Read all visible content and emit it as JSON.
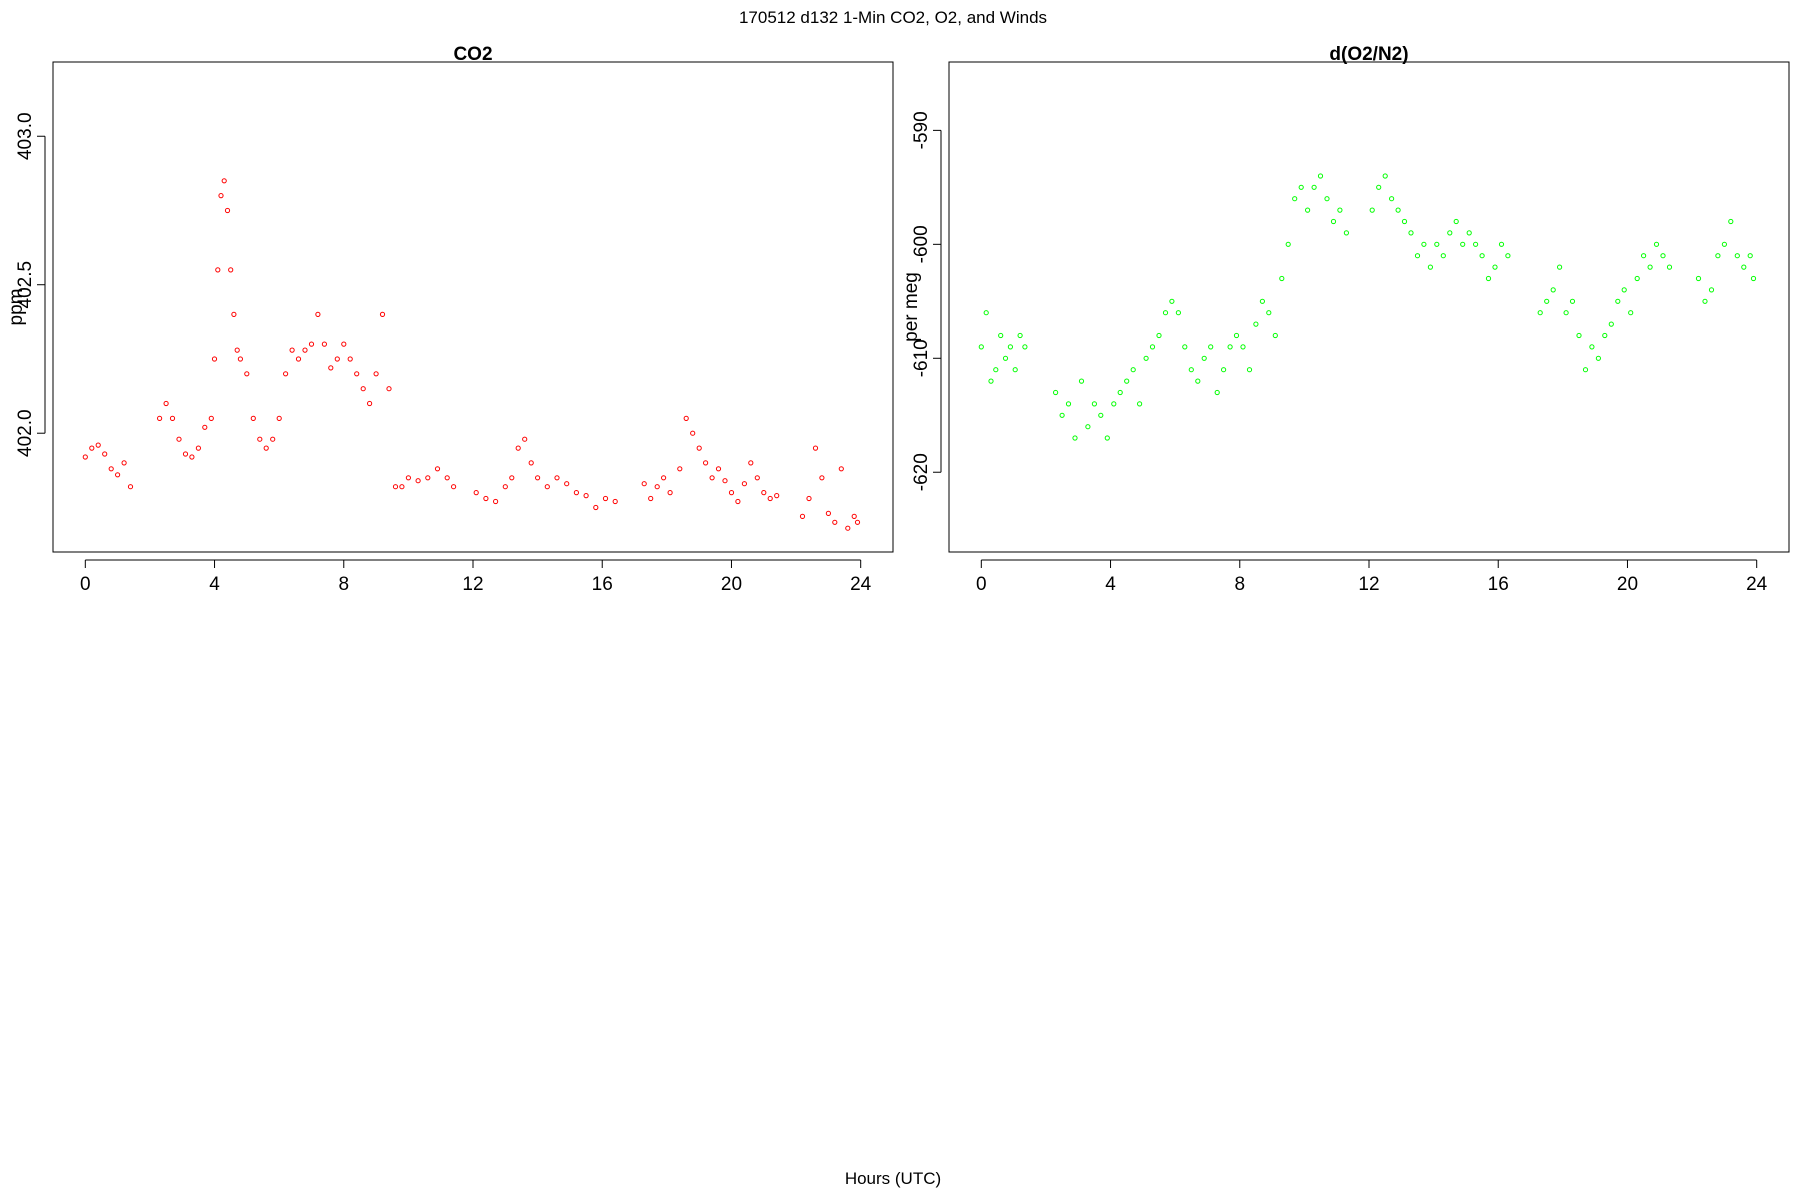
{
  "figure": {
    "suptitle": "170512   d132   1-Min CO2, O2, and Winds",
    "xcaption": "Hours (UTC)"
  },
  "colors": {
    "co2": "#ff0000",
    "o2": "#00ff00",
    "overlap": "#000000"
  },
  "chart_data": [
    {
      "type": "scatter",
      "title": "CO2",
      "xlabel": "",
      "ylabel": "ppm",
      "xlim": [
        -1,
        25
      ],
      "ylim": [
        401.6,
        403.25
      ],
      "xticks": [
        0,
        4,
        8,
        12,
        16,
        20,
        24
      ],
      "yticks": [
        402.0,
        402.5,
        403.0
      ],
      "ytick_labels": [
        "402.0",
        "402.5",
        "403.0"
      ],
      "marker": "open-circle",
      "grid": false,
      "series": [
        {
          "color": "#ff0000",
          "points": [
            [
              0.0,
              401.92
            ],
            [
              0.2,
              401.95
            ],
            [
              0.4,
              401.96
            ],
            [
              0.6,
              401.93
            ],
            [
              0.8,
              401.88
            ],
            [
              1.0,
              401.86
            ],
            [
              1.2,
              401.9
            ],
            [
              1.4,
              401.82
            ],
            [
              2.3,
              402.05
            ],
            [
              2.5,
              402.1
            ],
            [
              2.7,
              402.05
            ],
            [
              2.9,
              401.98
            ],
            [
              3.1,
              401.93
            ],
            [
              3.3,
              401.92
            ],
            [
              3.5,
              401.95
            ],
            [
              3.7,
              402.02
            ],
            [
              3.9,
              402.05
            ],
            [
              4.0,
              402.25
            ],
            [
              4.1,
              402.55
            ],
            [
              4.2,
              402.8
            ],
            [
              4.3,
              402.85
            ],
            [
              4.4,
              402.75
            ],
            [
              4.5,
              402.55
            ],
            [
              4.6,
              402.4
            ],
            [
              4.7,
              402.28
            ],
            [
              4.8,
              402.25
            ],
            [
              5.0,
              402.2
            ],
            [
              5.2,
              402.05
            ],
            [
              5.4,
              401.98
            ],
            [
              5.6,
              401.95
            ],
            [
              5.8,
              401.98
            ],
            [
              6.0,
              402.05
            ],
            [
              6.2,
              402.2
            ],
            [
              6.4,
              402.28
            ],
            [
              6.6,
              402.25
            ],
            [
              6.8,
              402.28
            ],
            [
              7.0,
              402.3
            ],
            [
              7.2,
              402.4
            ],
            [
              7.4,
              402.3
            ],
            [
              7.6,
              402.22
            ],
            [
              7.8,
              402.25
            ],
            [
              8.0,
              402.3
            ],
            [
              8.2,
              402.25
            ],
            [
              8.4,
              402.2
            ],
            [
              8.6,
              402.15
            ],
            [
              8.8,
              402.1
            ],
            [
              9.0,
              402.2
            ],
            [
              9.2,
              402.4
            ],
            [
              9.4,
              402.15
            ],
            [
              9.6,
              401.82
            ],
            [
              9.8,
              401.82
            ],
            [
              10.0,
              401.85
            ],
            [
              10.3,
              401.84
            ],
            [
              10.6,
              401.85
            ],
            [
              10.9,
              401.88
            ],
            [
              11.2,
              401.85
            ],
            [
              11.4,
              401.82
            ],
            [
              12.1,
              401.8
            ],
            [
              12.4,
              401.78
            ],
            [
              12.7,
              401.77
            ],
            [
              13.0,
              401.82
            ],
            [
              13.2,
              401.85
            ],
            [
              13.4,
              401.95
            ],
            [
              13.6,
              401.98
            ],
            [
              13.8,
              401.9
            ],
            [
              14.0,
              401.85
            ],
            [
              14.3,
              401.82
            ],
            [
              14.6,
              401.85
            ],
            [
              14.9,
              401.83
            ],
            [
              15.2,
              401.8
            ],
            [
              15.5,
              401.79
            ],
            [
              15.8,
              401.75
            ],
            [
              16.1,
              401.78
            ],
            [
              16.4,
              401.77
            ],
            [
              17.3,
              401.83
            ],
            [
              17.5,
              401.78
            ],
            [
              17.7,
              401.82
            ],
            [
              17.9,
              401.85
            ],
            [
              18.1,
              401.8
            ],
            [
              18.4,
              401.88
            ],
            [
              18.6,
              402.05
            ],
            [
              18.8,
              402.0
            ],
            [
              19.0,
              401.95
            ],
            [
              19.2,
              401.9
            ],
            [
              19.4,
              401.85
            ],
            [
              19.6,
              401.88
            ],
            [
              19.8,
              401.84
            ],
            [
              20.0,
              401.8
            ],
            [
              20.2,
              401.77
            ],
            [
              20.4,
              401.83
            ],
            [
              20.6,
              401.9
            ],
            [
              20.8,
              401.85
            ],
            [
              21.0,
              401.8
            ],
            [
              21.2,
              401.78
            ],
            [
              21.4,
              401.79
            ],
            [
              22.2,
              401.72
            ],
            [
              22.4,
              401.78
            ],
            [
              22.6,
              401.95
            ],
            [
              22.8,
              401.85
            ],
            [
              23.0,
              401.73
            ],
            [
              23.2,
              401.7
            ],
            [
              23.4,
              401.88
            ],
            [
              23.6,
              401.68
            ],
            [
              23.8,
              401.72
            ],
            [
              23.9,
              401.7
            ]
          ]
        }
      ]
    },
    {
      "type": "scatter",
      "title": "d(O2/N2)",
      "xlabel": "",
      "ylabel": "per meg",
      "xlim": [
        -1,
        25
      ],
      "ylim": [
        -627,
        -584
      ],
      "xticks": [
        0,
        4,
        8,
        12,
        16,
        20,
        24
      ],
      "yticks": [
        -620,
        -610,
        -600,
        -590
      ],
      "ytick_labels": [
        "-620",
        "-610",
        "-600",
        "-590"
      ],
      "marker": "open-circle",
      "grid": false,
      "series": [
        {
          "color": "#00ff00",
          "points": [
            [
              0.0,
              -609
            ],
            [
              0.15,
              -606
            ],
            [
              0.3,
              -612
            ],
            [
              0.45,
              -611
            ],
            [
              0.6,
              -608
            ],
            [
              0.75,
              -610
            ],
            [
              0.9,
              -609
            ],
            [
              1.05,
              -611
            ],
            [
              1.2,
              -608
            ],
            [
              1.35,
              -609
            ],
            [
              2.3,
              -613
            ],
            [
              2.5,
              -615
            ],
            [
              2.7,
              -614
            ],
            [
              2.9,
              -617
            ],
            [
              3.1,
              -612
            ],
            [
              3.3,
              -616
            ],
            [
              3.5,
              -614
            ],
            [
              3.7,
              -615
            ],
            [
              3.9,
              -617
            ],
            [
              4.1,
              -614
            ],
            [
              4.3,
              -613
            ],
            [
              4.5,
              -612
            ],
            [
              4.7,
              -611
            ],
            [
              4.9,
              -614
            ],
            [
              5.1,
              -610
            ],
            [
              5.3,
              -609
            ],
            [
              5.5,
              -608
            ],
            [
              5.7,
              -606
            ],
            [
              5.9,
              -605
            ],
            [
              6.1,
              -606
            ],
            [
              6.3,
              -609
            ],
            [
              6.5,
              -611
            ],
            [
              6.7,
              -612
            ],
            [
              6.9,
              -610
            ],
            [
              7.1,
              -609
            ],
            [
              7.3,
              -613
            ],
            [
              7.5,
              -611
            ],
            [
              7.7,
              -609
            ],
            [
              7.9,
              -608
            ],
            [
              8.1,
              -609
            ],
            [
              8.3,
              -611
            ],
            [
              8.5,
              -607
            ],
            [
              8.7,
              -605
            ],
            [
              8.9,
              -606
            ],
            [
              9.1,
              -608
            ],
            [
              9.3,
              -603
            ],
            [
              9.5,
              -600
            ],
            [
              9.7,
              -596
            ],
            [
              9.9,
              -595
            ],
            [
              10.1,
              -597
            ],
            [
              10.3,
              -595
            ],
            [
              10.5,
              -594
            ],
            [
              10.7,
              -596
            ],
            [
              10.9,
              -598
            ],
            [
              11.1,
              -597
            ],
            [
              11.3,
              -599
            ],
            [
              12.1,
              -597
            ],
            [
              12.3,
              -595
            ],
            [
              12.5,
              -594
            ],
            [
              12.7,
              -596
            ],
            [
              12.9,
              -597
            ],
            [
              13.1,
              -598
            ],
            [
              13.3,
              -599
            ],
            [
              13.5,
              -601
            ],
            [
              13.7,
              -600
            ],
            [
              13.9,
              -602
            ],
            [
              14.1,
              -600
            ],
            [
              14.3,
              -601
            ],
            [
              14.5,
              -599
            ],
            [
              14.7,
              -598
            ],
            [
              14.9,
              -600
            ],
            [
              15.1,
              -599
            ],
            [
              15.3,
              -600
            ],
            [
              15.5,
              -601
            ],
            [
              15.7,
              -603
            ],
            [
              15.9,
              -602
            ],
            [
              16.1,
              -600
            ],
            [
              16.3,
              -601
            ],
            [
              17.3,
              -606
            ],
            [
              17.5,
              -605
            ],
            [
              17.7,
              -604
            ],
            [
              17.9,
              -602
            ],
            [
              18.1,
              -606
            ],
            [
              18.3,
              -605
            ],
            [
              18.5,
              -608
            ],
            [
              18.7,
              -611
            ],
            [
              18.9,
              -609
            ],
            [
              19.1,
              -610
            ],
            [
              19.3,
              -608
            ],
            [
              19.5,
              -607
            ],
            [
              19.7,
              -605
            ],
            [
              19.9,
              -604
            ],
            [
              20.1,
              -606
            ],
            [
              20.3,
              -603
            ],
            [
              20.5,
              -601
            ],
            [
              20.7,
              -602
            ],
            [
              20.9,
              -600
            ],
            [
              21.1,
              -601
            ],
            [
              21.3,
              -602
            ],
            [
              22.2,
              -603
            ],
            [
              22.4,
              -605
            ],
            [
              22.6,
              -604
            ],
            [
              22.8,
              -601
            ],
            [
              23.0,
              -600
            ],
            [
              23.2,
              -598
            ],
            [
              23.4,
              -601
            ],
            [
              23.6,
              -602
            ],
            [
              23.8,
              -601
            ],
            [
              23.9,
              -603
            ]
          ]
        }
      ]
    }
  ]
}
